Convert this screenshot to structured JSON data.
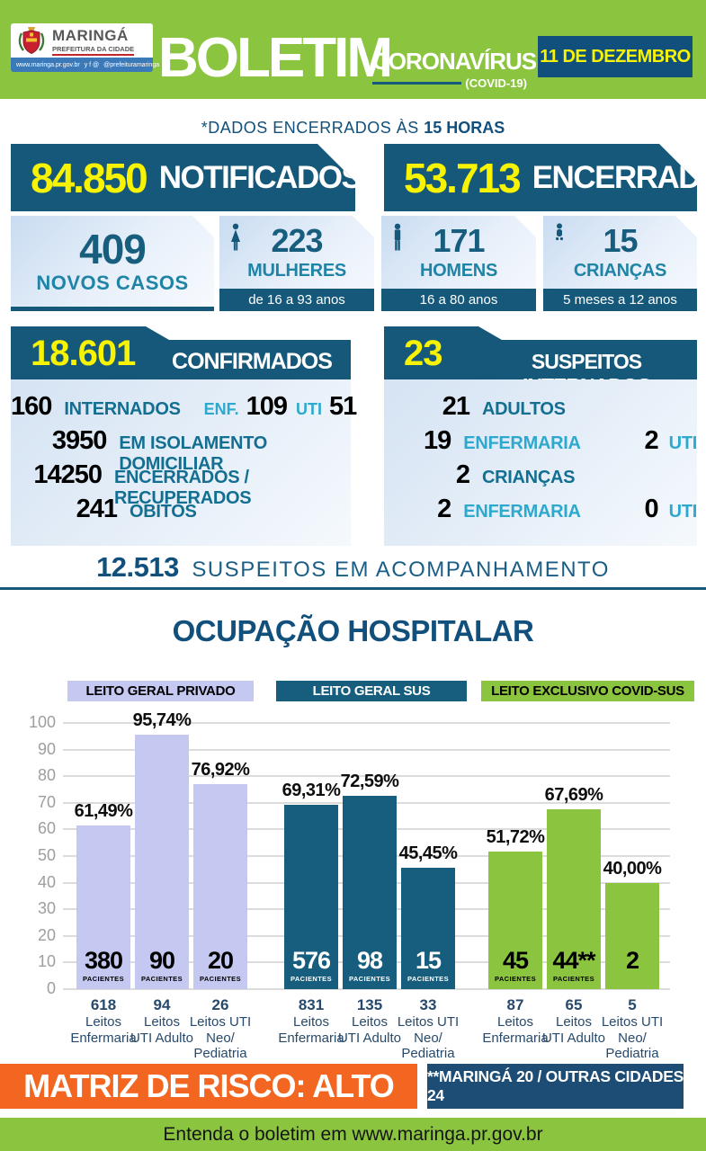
{
  "palette": {
    "green": "#8BC53F",
    "dark_blue": "#15587A",
    "navy": "#1D4D75",
    "yellow": "#F8F303",
    "orange": "#F26621",
    "teal": "#1F84A6",
    "cyan": "#2EA9CE",
    "purple_bar": "#C5C8F1",
    "sus_bar": "#175E7E"
  },
  "header": {
    "logo": {
      "city": "MARINGÁ",
      "subtitle": "PREFEITURA DA CIDADE",
      "strip_url": "www.maringa.pr.gov.br",
      "strip_icons": "y f @",
      "strip_handle": "@prefeituramaringa"
    },
    "title": "BOLETIM",
    "subtitle": "CORONAVÍRUS",
    "subtitle2": "(COVID-19)",
    "date": "11 DE DEZEMBRO"
  },
  "closing_note": {
    "prefix": "*DADOS ENCERRADOS ÀS ",
    "bold": "15 HORAS"
  },
  "banners": [
    {
      "value": "84.850",
      "label": "NOTIFICADOS"
    },
    {
      "value": "53.713",
      "label": "ENCERRADOS"
    }
  ],
  "new_cases": {
    "value": "409",
    "label": "NOVOS CASOS"
  },
  "demographics": [
    {
      "icon": "woman-icon",
      "value": "223",
      "label": "MULHERES",
      "range": "de 16 a 93 anos"
    },
    {
      "icon": "man-icon",
      "value": "171",
      "label": "HOMENS",
      "range": "16 a 80 anos"
    },
    {
      "icon": "child-icon",
      "value": "15",
      "label": "CRIANÇAS",
      "range": "5 meses a 12 anos"
    }
  ],
  "confirmed_panel": {
    "value": "18.601",
    "title": "CONFIRMADOS",
    "rows": [
      {
        "num": "160",
        "label": "INTERNADOS",
        "extra": {
          "enf_label": "ENF.",
          "enf_num": "109",
          "uti_label": "UTI",
          "uti_num": "51"
        }
      },
      {
        "num": "3950",
        "label": "EM ISOLAMENTO DOMICILIAR"
      },
      {
        "num": "14250",
        "label": "ENCERRADOS / RECUPERADOS"
      },
      {
        "num": "241",
        "label": "ÓBITOS"
      }
    ]
  },
  "suspects_panel": {
    "value": "23",
    "title": "SUSPEITOS INTERNADOS",
    "rows": [
      {
        "num": "21",
        "label": "ADULTOS",
        "style": "dark"
      },
      {
        "num": "19",
        "label": "ENFERMARIA",
        "style": "cyan",
        "num2": "2",
        "label2": "UTI"
      },
      {
        "num": "2",
        "label": "CRIANÇAS",
        "style": "dark"
      },
      {
        "num": "2",
        "label": "ENFERMARIA",
        "style": "cyan",
        "num2": "0",
        "label2": "UTI"
      }
    ]
  },
  "monitoring": {
    "value": "12.513",
    "label": "SUSPEITOS EM ACOMPANHAMENTO"
  },
  "chart_data": {
    "type": "bar",
    "title": "OCUPAÇÃO HOSPITALAR",
    "ylabel": "",
    "xlabel": "",
    "ylim": [
      0,
      100
    ],
    "yticks": [
      0,
      10,
      20,
      30,
      40,
      50,
      60,
      70,
      80,
      90,
      100
    ],
    "grid": true,
    "legend_position": "top",
    "groups": [
      {
        "legend": "LEITO GERAL PRIVADO",
        "bar_color": "#C5C8F1",
        "label_color": "#000000",
        "bars": [
          {
            "value": 61.49,
            "value_label": "61,49%",
            "patients": "380",
            "patients_word": "PACIENTES",
            "category": [
              "618",
              "Leitos",
              "Enfermaria"
            ]
          },
          {
            "value": 95.74,
            "value_label": "95,74%",
            "patients": "90",
            "patients_word": "PACIENTES",
            "category": [
              "94",
              "Leitos",
              "UTI Adulto"
            ]
          },
          {
            "value": 76.92,
            "value_label": "76,92%",
            "patients": "20",
            "patients_word": "PACIENTES",
            "category": [
              "26",
              "Leitos UTI",
              "Neo/",
              "Pediatria"
            ]
          }
        ]
      },
      {
        "legend": "LEITO GERAL SUS",
        "bar_color": "#175E7E",
        "label_color": "#FFFFFF",
        "bars": [
          {
            "value": 69.31,
            "value_label": "69,31%",
            "patients": "576",
            "patients_word": "PACIENTES",
            "category": [
              "831",
              "Leitos",
              "Enfermaria"
            ]
          },
          {
            "value": 72.59,
            "value_label": "72,59%",
            "patients": "98",
            "patients_word": "PACIENTES",
            "category": [
              "135",
              "Leitos",
              "UTI Adulto"
            ]
          },
          {
            "value": 45.45,
            "value_label": "45,45%",
            "patients": "15",
            "patients_word": "PACIENTES",
            "category": [
              "33",
              "Leitos UTI",
              "Neo/",
              "Pediatria"
            ]
          }
        ]
      },
      {
        "legend": "LEITO EXCLUSIVO COVID-SUS",
        "bar_color": "#8BC53F",
        "label_color": "#000000",
        "bars": [
          {
            "value": 51.72,
            "value_label": "51,72%",
            "patients": "45",
            "patients_word": "PACIENTES",
            "category": [
              "87",
              "Leitos",
              "Enfermaria"
            ]
          },
          {
            "value": 67.69,
            "value_label": "67,69%",
            "patients": "44**",
            "patients_word": "PACIENTES",
            "category": [
              "65",
              "Leitos",
              "UTI Adulto"
            ]
          },
          {
            "value": 40.0,
            "value_label": "40,00%",
            "patients": "2",
            "patients_word": "",
            "category": [
              "5",
              "Leitos UTI",
              "Neo/",
              "Pediatria"
            ]
          }
        ]
      }
    ]
  },
  "risk": {
    "label": "MATRIZ DE RISCO: ALTO"
  },
  "note_box": {
    "label": "**MARINGÁ 20 / OUTRAS CIDADES 24"
  },
  "footer": {
    "label": "Entenda o boletim em www.maringa.pr.gov.br"
  }
}
